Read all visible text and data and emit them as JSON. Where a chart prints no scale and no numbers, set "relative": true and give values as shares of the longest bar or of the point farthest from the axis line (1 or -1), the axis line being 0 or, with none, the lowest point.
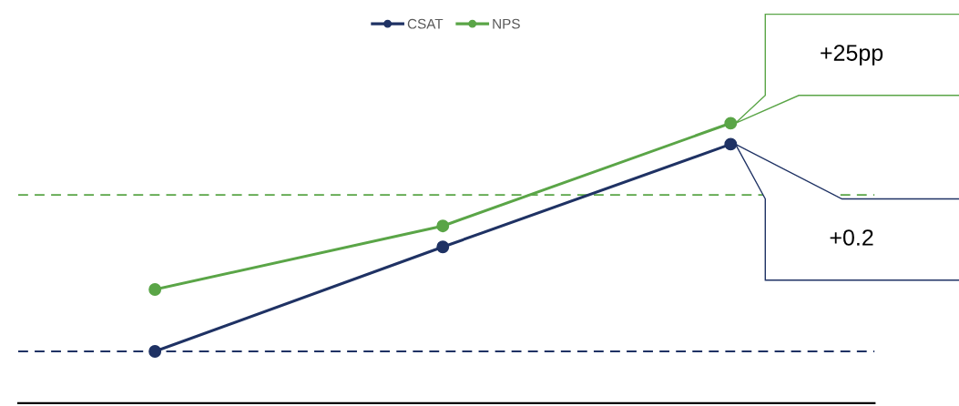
{
  "chart_data": {
    "type": "line",
    "relative": true,
    "categories": [
      null,
      null,
      null
    ],
    "series": [
      {
        "name": "CSAT",
        "color": "#1f3264",
        "values": [
          0.185,
          0.558,
          0.925
        ]
      },
      {
        "name": "NPS",
        "color": "#5aa547",
        "values": [
          0.406,
          0.633,
          1.0
        ]
      }
    ],
    "ref_lines": [
      {
        "axis": "y",
        "value": 0.185,
        "color": "#1f3264",
        "line_style": "dashed"
      },
      {
        "axis": "y",
        "value": 0.744,
        "color": "#5aa547",
        "line_style": "dashed"
      }
    ],
    "annotations": [
      "+25pp",
      "+0.2"
    ],
    "legend": "top",
    "marker": "circle",
    "line_style": "solid",
    "grid": false
  }
}
